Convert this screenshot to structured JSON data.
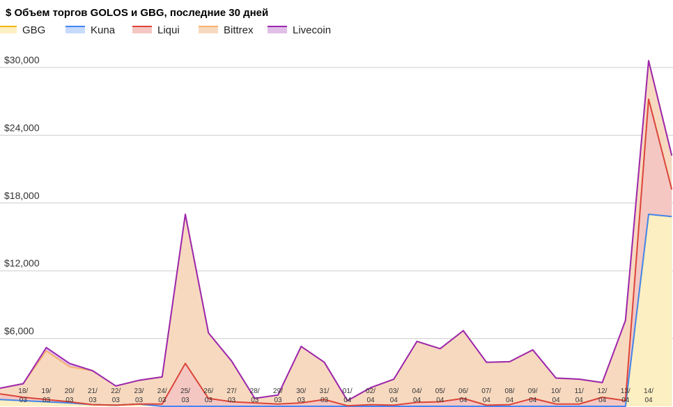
{
  "chart_data": {
    "type": "area",
    "title": "$ Объем торгов GOLOS и GBG, последние 30 дней",
    "xlabel": "",
    "ylabel": "",
    "stacked": true,
    "grid": true,
    "legend_position": "top-left",
    "ylim": [
      0,
      30000
    ],
    "yticks": [
      6000,
      12000,
      18000,
      24000,
      30000
    ],
    "ytick_labels": [
      "$6,000",
      "$12,000",
      "$18,000",
      "$24,000",
      "$30,000"
    ],
    "categories": [
      [
        "",
        ""
      ],
      [
        "18/",
        "03"
      ],
      [
        "19/",
        "03"
      ],
      [
        "20/",
        "03"
      ],
      [
        "21/",
        "03"
      ],
      [
        "22/",
        "03"
      ],
      [
        "23/",
        "03"
      ],
      [
        "24/",
        "03"
      ],
      [
        "25/",
        "03"
      ],
      [
        "26/",
        "03"
      ],
      [
        "27/",
        "03"
      ],
      [
        "28/",
        "03"
      ],
      [
        "29/",
        "03"
      ],
      [
        "30/",
        "03"
      ],
      [
        "31/",
        "03"
      ],
      [
        "01/",
        "04"
      ],
      [
        "02/",
        "04"
      ],
      [
        "03/",
        "04"
      ],
      [
        "04/",
        "04"
      ],
      [
        "05/",
        "04"
      ],
      [
        "06/",
        "04"
      ],
      [
        "07/",
        "04"
      ],
      [
        "08/",
        "04"
      ],
      [
        "09/",
        "04"
      ],
      [
        "10/",
        "04"
      ],
      [
        "11/",
        "04"
      ],
      [
        "12/",
        "04"
      ],
      [
        "13/",
        "04"
      ],
      [
        "14/",
        "04"
      ],
      [
        "",
        ""
      ]
    ],
    "series": [
      {
        "name": "GBG",
        "color": "#f4b400",
        "fill": "#fcefc2",
        "values": [
          600,
          500,
          400,
          300,
          150,
          100,
          200,
          0,
          0,
          0,
          0,
          0,
          0,
          0,
          0,
          0,
          0,
          0,
          0,
          0,
          0,
          0,
          0,
          0,
          0,
          0,
          0,
          0,
          17000,
          16800
        ]
      },
      {
        "name": "Kuna",
        "color": "#4285f4",
        "fill": "#c6dafc",
        "values": [
          0,
          0,
          0,
          0,
          0,
          0,
          0,
          0,
          0,
          0,
          0,
          0,
          0,
          0,
          0,
          0,
          0,
          0,
          0,
          0,
          0,
          0,
          0,
          0,
          0,
          0,
          0,
          0,
          0,
          0
        ]
      },
      {
        "name": "Liqui",
        "color": "#db4437",
        "fill": "#f4c7c3",
        "values": [
          500,
          300,
          200,
          100,
          0,
          0,
          0,
          200,
          3800,
          700,
          400,
          300,
          200,
          300,
          600,
          50,
          150,
          100,
          350,
          400,
          700,
          100,
          150,
          700,
          200,
          200,
          800,
          500,
          10200,
          2400
        ]
      },
      {
        "name": "Bittrex",
        "color": "#f6b26b",
        "fill": "#f7d9c0",
        "values": [
          500,
          1200,
          4300,
          3100,
          3000,
          1700,
          2100,
          2400,
          13200,
          5800,
          3600,
          400,
          800,
          5000,
          3300,
          450,
          1500,
          2300,
          5400,
          4700,
          6000,
          3800,
          3800,
          4300,
          2300,
          2200,
          1300,
          7100,
          3400,
          3000
        ]
      },
      {
        "name": "Livecoin",
        "color": "#9c27b0",
        "fill": "#e1bee7",
        "values": [
          0,
          0,
          300,
          300,
          0,
          0,
          0,
          0,
          0,
          0,
          0,
          0,
          0,
          0,
          0,
          0,
          0,
          0,
          0,
          0,
          0,
          0,
          0,
          0,
          0,
          0,
          0,
          0,
          0,
          0
        ]
      }
    ]
  }
}
